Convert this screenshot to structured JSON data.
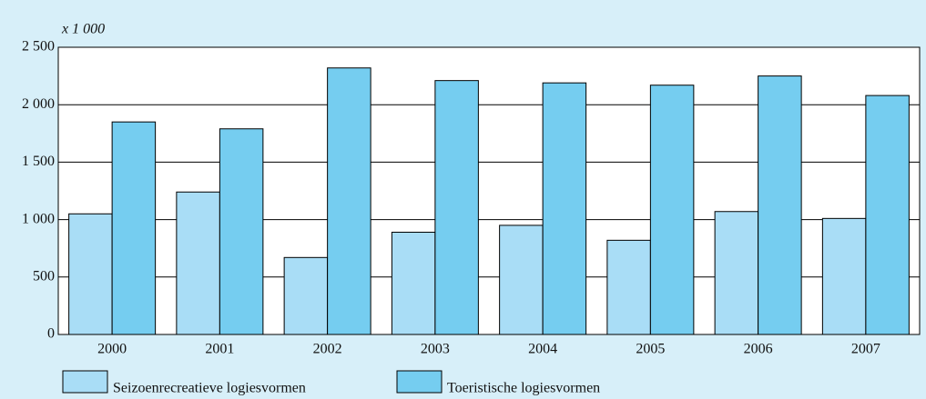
{
  "chart_data": {
    "type": "bar",
    "ylabel": "x 1 000",
    "categories": [
      "2000",
      "2001",
      "2002",
      "2003",
      "2004",
      "2005",
      "2006",
      "2007"
    ],
    "series": [
      {
        "name": "Seizoenrecreatieve logiesvormen",
        "color": "#a9ddf6",
        "values": [
          1050,
          1240,
          670,
          890,
          950,
          820,
          1070,
          1010
        ]
      },
      {
        "name": "Toeristische logiesvormen",
        "color": "#75cdf0",
        "values": [
          1850,
          1790,
          2320,
          2210,
          2190,
          2170,
          2250,
          2080
        ]
      }
    ],
    "ylim": [
      0,
      2500
    ],
    "yticks": [
      0,
      500,
      {
        "value": 1000,
        "label": "1 000"
      },
      {
        "value": 1500,
        "label": "1 500"
      },
      {
        "value": 2000,
        "label": "2 000"
      },
      {
        "value": 2500,
        "label": "2 500"
      }
    ],
    "grid": true
  }
}
